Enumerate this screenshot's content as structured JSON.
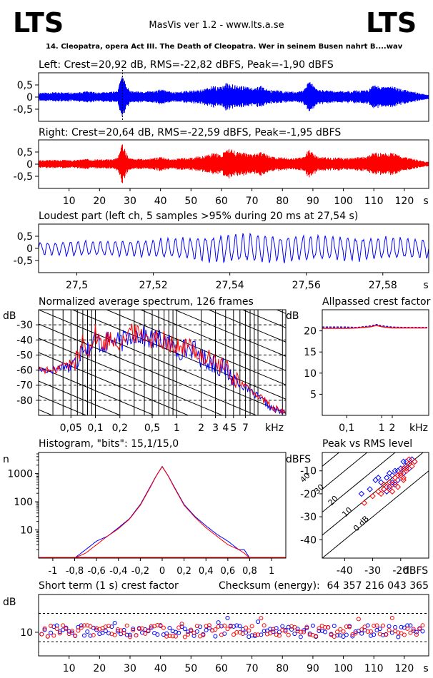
{
  "header": {
    "logo_left": "LTS",
    "logo_right": "LTS",
    "app_title": "MasVis ver 1.2 - www.lts.a.se",
    "file_name": "14. Cleopatra, opera Act III. The Death of Cleopatra. Wer in seinem Busen nahrt B....wav"
  },
  "colors": {
    "left": "#0000ff",
    "right": "#ff0000",
    "axis": "#000000",
    "grid": "#000000"
  },
  "chart_data": [
    {
      "type": "area",
      "id": "left-waveform",
      "title": "Left: Crest=20,92 dB, RMS=-22,82 dBFS, Peak=-1,90 dBFS",
      "ylim": [
        -1,
        1
      ],
      "y_ticks": [
        0.5,
        0,
        -0.5
      ],
      "y_tick_labels": [
        "0,5",
        "0",
        "-0,5"
      ],
      "xlim": [
        0,
        128
      ],
      "marker_time_s": 27.54,
      "color": "#0000ff",
      "envelope": {
        "t": [
          0,
          4,
          8,
          12,
          16,
          20,
          24,
          26,
          27.5,
          29,
          30,
          34,
          38,
          40,
          44,
          48,
          52,
          54,
          57,
          60,
          62,
          66,
          70,
          73,
          76,
          80,
          84,
          87,
          89,
          91,
          93,
          96,
          100,
          104,
          108,
          110,
          113,
          116,
          120,
          124,
          127
        ],
        "amp": [
          0.18,
          0.2,
          0.2,
          0.18,
          0.24,
          0.2,
          0.22,
          0.3,
          0.98,
          0.45,
          0.25,
          0.22,
          0.26,
          0.32,
          0.22,
          0.25,
          0.3,
          0.32,
          0.45,
          0.42,
          0.62,
          0.48,
          0.38,
          0.48,
          0.3,
          0.26,
          0.22,
          0.28,
          0.72,
          0.34,
          0.3,
          0.26,
          0.24,
          0.28,
          0.32,
          0.5,
          0.42,
          0.46,
          0.3,
          0.2,
          0.1
        ]
      }
    },
    {
      "type": "area",
      "id": "right-waveform",
      "title": "Right: Crest=20,64 dB, RMS=-22,59 dBFS, Peak=-1,95 dBFS",
      "ylim": [
        -1,
        1
      ],
      "y_ticks": [
        0.5,
        0,
        -0.5
      ],
      "y_tick_labels": [
        "0,5",
        "0",
        "-0,5"
      ],
      "xlim": [
        0,
        128
      ],
      "x_ticks": [
        10,
        20,
        30,
        40,
        50,
        60,
        70,
        80,
        90,
        100,
        110,
        120
      ],
      "x_unit": "s",
      "color": "#ff0000",
      "envelope": {
        "t": [
          0,
          4,
          8,
          12,
          16,
          20,
          24,
          26,
          27.5,
          29,
          30,
          34,
          38,
          40,
          44,
          48,
          52,
          54,
          57,
          60,
          62,
          66,
          70,
          73,
          76,
          80,
          84,
          87,
          89,
          91,
          93,
          96,
          100,
          104,
          108,
          110,
          113,
          116,
          120,
          124,
          127
        ],
        "amp": [
          0.16,
          0.18,
          0.18,
          0.17,
          0.22,
          0.2,
          0.2,
          0.28,
          0.9,
          0.42,
          0.24,
          0.22,
          0.26,
          0.3,
          0.22,
          0.26,
          0.32,
          0.34,
          0.48,
          0.44,
          0.66,
          0.5,
          0.42,
          0.52,
          0.32,
          0.28,
          0.24,
          0.3,
          0.68,
          0.36,
          0.3,
          0.28,
          0.26,
          0.28,
          0.34,
          0.52,
          0.44,
          0.48,
          0.3,
          0.2,
          0.1
        ]
      }
    },
    {
      "type": "line",
      "id": "loudest-part",
      "title": "Loudest part (left  ch, 5 samples >95% during 20 ms at 27,54 s)",
      "ylim": [
        -1,
        1
      ],
      "y_ticks": [
        0.5,
        0,
        -0.5
      ],
      "y_tick_labels": [
        "0,5",
        "0",
        "-0,5"
      ],
      "xlim": [
        27.49,
        27.592
      ],
      "x_ticks": [
        27.5,
        27.52,
        27.54,
        27.56,
        27.58
      ],
      "x_tick_labels": [
        "27,5",
        "27,52",
        "27,54",
        "27,56",
        "27,58"
      ],
      "x_unit": "s",
      "color": "#0000ff",
      "cycles": 52,
      "amp_envelope": {
        "t": [
          27.49,
          27.5,
          27.51,
          27.52,
          27.53,
          27.54,
          27.55,
          27.56,
          27.57,
          27.58,
          27.592
        ],
        "amp": [
          0.28,
          0.34,
          0.36,
          0.4,
          0.5,
          0.68,
          0.62,
          0.58,
          0.55,
          0.5,
          0.42
        ]
      }
    },
    {
      "type": "line",
      "id": "average-spectrum",
      "title": "Normalized average spectrum, 126 frames",
      "ylabel": "dB",
      "ylim": [
        -90,
        -20
      ],
      "y_ticks": [
        -30,
        -40,
        -50,
        -60,
        -70,
        -80
      ],
      "xlim_hz": [
        20,
        22000
      ],
      "x_ticks_khz": [
        0.05,
        0.1,
        0.2,
        0.5,
        1,
        2,
        3,
        4,
        5,
        7
      ],
      "x_tick_labels": [
        "0,05",
        "0,1",
        "0,2",
        "0,5",
        "1",
        "2",
        "3",
        "4",
        "5",
        "7"
      ],
      "x_unit": "kHz",
      "scale": "log",
      "series": [
        {
          "name": "left",
          "color": "#0000ff",
          "f_hz": [
            20,
            30,
            40,
            50,
            60,
            70,
            80,
            90,
            100,
            120,
            150,
            200,
            250,
            300,
            400,
            500,
            700,
            1000,
            1500,
            2000,
            3000,
            4000,
            5000,
            7000,
            10000,
            15000,
            20000
          ],
          "db": [
            -60,
            -60,
            -57,
            -58,
            -54,
            -42,
            -46,
            -45,
            -38,
            -44,
            -40,
            -42,
            -38,
            -36,
            -38,
            -40,
            -40,
            -47,
            -45,
            -52,
            -56,
            -60,
            -66,
            -72,
            -78,
            -86,
            -88
          ]
        },
        {
          "name": "right",
          "color": "#ff0000",
          "f_hz": [
            20,
            30,
            40,
            50,
            60,
            70,
            80,
            90,
            100,
            120,
            150,
            200,
            250,
            300,
            400,
            500,
            700,
            1000,
            1500,
            2000,
            3000,
            4000,
            5000,
            7000,
            10000,
            15000,
            20000
          ],
          "db": [
            -59,
            -61,
            -56,
            -57,
            -52,
            -40,
            -45,
            -44,
            -36,
            -43,
            -39,
            -41,
            -37,
            -35,
            -37,
            -39,
            -39,
            -46,
            -44,
            -51,
            -55,
            -59,
            -65,
            -71,
            -77,
            -85,
            -88
          ]
        }
      ]
    },
    {
      "type": "line",
      "id": "allpassed-crest",
      "title": "Allpassed crest factor",
      "ylabel": "dB",
      "ylim": [
        0,
        25
      ],
      "y_ticks": [
        20,
        15,
        10,
        5
      ],
      "x_ticks_khz": [
        0.1,
        1,
        2
      ],
      "x_tick_labels": [
        "0,1",
        "1",
        "2"
      ],
      "x_unit": "kHz",
      "scale": "log",
      "series": [
        {
          "name": "left",
          "color": "#0000ff",
          "f_hz": [
            20,
            100,
            200,
            500,
            700,
            1000,
            2000,
            5000,
            20000
          ],
          "db": [
            20.9,
            20.9,
            20.8,
            21.2,
            21.5,
            21.2,
            20.9,
            20.8,
            20.8
          ]
        },
        {
          "name": "right",
          "color": "#ff0000",
          "f_hz": [
            20,
            100,
            200,
            500,
            700,
            1000,
            2000,
            5000,
            20000
          ],
          "db": [
            20.6,
            20.6,
            20.7,
            21.0,
            21.3,
            21.0,
            20.7,
            20.7,
            20.7
          ]
        }
      ]
    },
    {
      "type": "line",
      "id": "histogram",
      "title": "Histogram, \"bits\": 15,1/15,0",
      "ylabel": "n",
      "scale": "log",
      "y_ticks": [
        1000,
        100,
        10
      ],
      "x_ticks": [
        -1,
        -0.8,
        -0.6,
        -0.4,
        -0.2,
        0,
        0.2,
        0.4,
        0.6,
        0.8,
        1
      ],
      "x_tick_labels": [
        "-1",
        "-0,8",
        "-0,6",
        "-0,4",
        "-0,2",
        "0",
        "0,2",
        "0,4",
        "0,6",
        "0,8",
        "1"
      ],
      "series": [
        {
          "name": "left",
          "color": "#0000ff",
          "x": [
            -0.8,
            -0.7,
            -0.6,
            -0.5,
            -0.4,
            -0.3,
            -0.2,
            -0.1,
            -0.05,
            0,
            0.05,
            0.1,
            0.2,
            0.3,
            0.4,
            0.5,
            0.6,
            0.7,
            0.75,
            0.8
          ],
          "n": [
            1,
            2,
            4,
            6,
            12,
            25,
            80,
            400,
            900,
            1800,
            900,
            400,
            80,
            30,
            14,
            7,
            4,
            2,
            2,
            1
          ]
        },
        {
          "name": "right",
          "color": "#ff0000",
          "x": [
            -0.8,
            -0.7,
            -0.6,
            -0.5,
            -0.4,
            -0.3,
            -0.2,
            -0.1,
            -0.05,
            0,
            0.05,
            0.1,
            0.2,
            0.3,
            0.4,
            0.5,
            0.6,
            0.7,
            0.75,
            0.8
          ],
          "n": [
            1,
            1.5,
            3,
            6,
            11,
            24,
            75,
            380,
            880,
            1750,
            880,
            380,
            75,
            28,
            12,
            6,
            3,
            2,
            1.5,
            1
          ]
        }
      ]
    },
    {
      "type": "scatter",
      "id": "peak-vs-rms",
      "title": "Peak vs RMS level",
      "ylabel": "dBFS",
      "xlabel": "dBFS",
      "xlim": [
        -48,
        -10
      ],
      "ylim": [
        -48,
        -2
      ],
      "x_ticks": [
        -40,
        -30,
        -20
      ],
      "y_ticks": [
        -10,
        -20,
        -30,
        -40
      ],
      "crest_lines_db": [
        0,
        10,
        20,
        30,
        40
      ],
      "crest_line_labels": [
        "0 dB",
        "10",
        "20",
        "30",
        "40"
      ],
      "series": [
        {
          "name": "left",
          "color": "#0000ff",
          "rms": [
            -34,
            -31,
            -29,
            -27,
            -25,
            -24,
            -23,
            -22,
            -21,
            -20,
            -19,
            -18,
            -18,
            -17,
            -16,
            -25,
            -22,
            -20,
            -19,
            -21,
            -23,
            -26,
            -28,
            -24,
            -17,
            -15
          ],
          "peak": [
            -20,
            -18,
            -14,
            -15,
            -13,
            -17,
            -12,
            -10,
            -14,
            -9,
            -11,
            -8,
            -6,
            -7,
            -5,
            -19,
            -16,
            -12,
            -6,
            -10,
            -15,
            -18,
            -13,
            -11,
            -9,
            -6
          ]
        },
        {
          "name": "right",
          "color": "#ff0000",
          "rms": [
            -33,
            -30,
            -28,
            -26,
            -25,
            -24,
            -23,
            -22,
            -21,
            -20,
            -19,
            -19,
            -18,
            -17,
            -16,
            -15,
            -27,
            -24,
            -22,
            -21,
            -20,
            -18,
            -17,
            -26,
            -23,
            -19
          ],
          "peak": [
            -24,
            -21,
            -19,
            -18,
            -17,
            -15,
            -16,
            -13,
            -12,
            -11,
            -9,
            -14,
            -10,
            -7,
            -8,
            -6,
            -20,
            -18,
            -15,
            -17,
            -12,
            -9,
            -5,
            -16,
            -19,
            -13
          ]
        }
      ]
    },
    {
      "type": "scatter",
      "id": "short-term-crest",
      "title": "Short term (1 s) crest factor",
      "ylabel": "dB",
      "y_ticks": [
        10
      ],
      "y_range": [
        0,
        26
      ],
      "ref_lines_db": [
        6,
        18
      ],
      "xlim": [
        0,
        128
      ],
      "x_ticks": [
        10,
        20,
        30,
        40,
        50,
        60,
        70,
        80,
        90,
        100,
        110,
        120
      ],
      "x_unit": "s",
      "seed_left": 7,
      "seed_right": 13
    }
  ],
  "checksum": {
    "label": "Checksum (energy):",
    "value": "64 357 216 043 365"
  }
}
